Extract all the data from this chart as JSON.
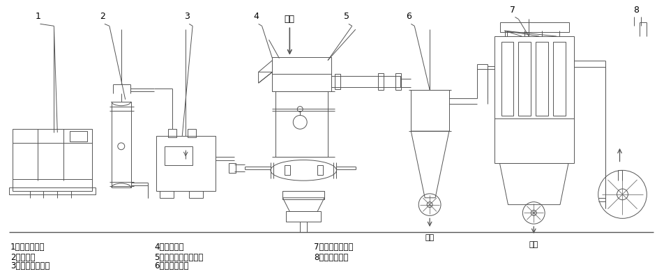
{
  "bg_color": "#ffffff",
  "line_color": "#555555",
  "figsize": [
    9.42,
    3.96
  ],
  "dpi": 100,
  "label_wuliao": "物料",
  "label_chengpin": "成品",
  "num_labels": [
    "1",
    "2",
    "3",
    "4",
    "5",
    "6",
    "7",
    "8"
  ],
  "legend_col1": [
    "1、空气压缩机",
    "2、储气罐",
    "3、冷冻式干燥机"
  ],
  "legend_col2": [
    "4、物料进口",
    "5、流化床气流粉碎机",
    "6、旋风分离器"
  ],
  "legend_col3": [
    "7、脉冲式除尘器",
    "8、离心通风机"
  ]
}
